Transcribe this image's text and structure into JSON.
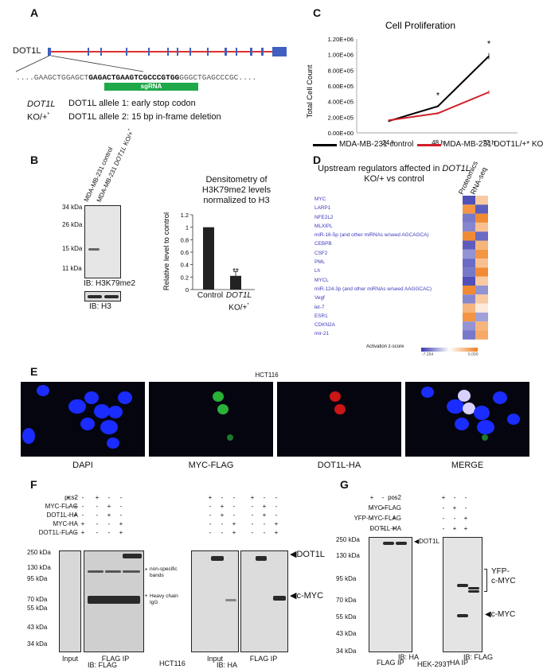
{
  "panels": {
    "a": "A",
    "b": "B",
    "c": "C",
    "d": "D",
    "e": "E",
    "f": "F",
    "g": "G"
  },
  "panel_a": {
    "gene": "DOT1L",
    "seq_prefix": "....GAAGCTGGAGCT",
    "seq_bold": "GAGACTGAAGTCGCCCGTGG",
    "seq_suffix": "GGGCTGAGCCCGC....",
    "sgrna": "sgRNA",
    "ko_gene": "DOT1L",
    "ko_suffix": "KO/+",
    "ko_sup": "*",
    "allele1": "DOT1L allele 1: early stop codon",
    "allele2": "DOT1L allele 2: 15 bp in-frame deletion"
  },
  "panel_b": {
    "lane1": "MDA-MB-231 control",
    "lane2_prefix": "MDA-MB-231 ",
    "lane2_gene": "DOT1L",
    "lane2_suffix": " KO/+",
    "lane2_sup": "*",
    "markers": [
      "34 kDa",
      "26 kDa",
      "15 kDa",
      "11 kDa"
    ],
    "ib1": "IB: H3K79me2",
    "ib2": "IB: H3",
    "densito_title": "Densitometry of H3K79me2 levels normalized to H3",
    "ylabel": "Relative level to control",
    "sig": "**",
    "xcat1": "Control",
    "xcat2_gene": "DOT1L",
    "xcat2_suffix": "KO/+",
    "xcat2_sup": "*"
  },
  "chart_data": [
    {
      "type": "bar",
      "categories": [
        "Control",
        "DOT1L KO/+*"
      ],
      "values": [
        1.0,
        0.22
      ],
      "errors": [
        0,
        0.07
      ],
      "ylabel": "Relative level to control",
      "ylim": [
        0,
        1.2
      ],
      "yticks": [
        0,
        0.2,
        0.4,
        0.6,
        0.8,
        1,
        1.2
      ],
      "ytick_labels": [
        "0",
        "0.2",
        "0.4",
        "0.6",
        "0.8",
        "1",
        "1.2"
      ]
    },
    {
      "type": "line",
      "title": "Cell Proliferation",
      "x": [
        "24 h",
        "48 h",
        "72 h"
      ],
      "series": [
        {
          "name": "MDA-MB-231 control",
          "values": [
            150000,
            340000,
            980000
          ],
          "errors": [
            10000,
            15000,
            40000
          ],
          "color": "#000000"
        },
        {
          "name": "MDA-MB-231 DOT1L/+* KO",
          "values": [
            160000,
            250000,
            520000
          ],
          "errors": [
            8000,
            15000,
            25000
          ],
          "color": "#d0202a"
        }
      ],
      "ylabel": "Total Cell Count",
      "ylim": [
        0,
        1200000
      ],
      "yticks": [
        0,
        200000,
        400000,
        600000,
        800000,
        1000000,
        1200000
      ],
      "ytick_labels": [
        "0.00E+00",
        "2.00E+05",
        "4.00E+05",
        "6.00E+05",
        "8.00E+05",
        "1.00E+06",
        "1.20E+06"
      ],
      "sig_markers": [
        "*",
        "*"
      ],
      "legend_position": "bottom"
    },
    {
      "type": "heatmap",
      "title_prefix": "Upstream regulators affected in ",
      "title_gene": "DOT1L",
      "title_suffix": " KO/+ vs control",
      "columns": [
        "Proteomics",
        "RNA-seq"
      ],
      "rows": [
        "MYC",
        "LARP1",
        "NFE2L2",
        "MLXIPL",
        "miR-16-5p (and other miRNAs w/seed AGCAGCA)",
        "CEBPB",
        "CSF2",
        "PML",
        "Lh",
        "MYCL",
        "miR-124-3p (and other miRNAs w/seed AAGGCAC)",
        "Vegf",
        "let-7",
        "ESR1",
        "CDKN2A",
        "mir-21"
      ],
      "values": [
        [
          -6.5,
          2.5
        ],
        [
          5.0,
          -6.0
        ],
        [
          -5.0,
          5.5
        ],
        [
          -4.5,
          3.0
        ],
        [
          5.5,
          -5.5
        ],
        [
          -6.0,
          3.5
        ],
        [
          -4.0,
          5.0
        ],
        [
          -5.5,
          3.0
        ],
        [
          -5.0,
          5.5
        ],
        [
          -6.5,
          2.5
        ],
        [
          5.5,
          -4.0
        ],
        [
          -4.5,
          2.5
        ],
        [
          3.5,
          1.0
        ],
        [
          5.0,
          -3.5
        ],
        [
          -4.0,
          3.5
        ],
        [
          -5.0,
          4.0
        ]
      ],
      "colorbar_label": "Activation z-score",
      "colorbar_min": "-7.264",
      "colorbar_max": "6.000",
      "color_low": "#3b3bb0",
      "color_high": "#f08020"
    }
  ],
  "panel_c": {
    "legend1": "MDA-MB-231 control",
    "legend2": "MDA-MB-231 DOT1L/+* KO"
  },
  "panel_e": {
    "cell_line": "HCT116",
    "captions": [
      "DAPI",
      "MYC-FLAG",
      "DOT1L-HA",
      "MERGE"
    ],
    "colors": {
      "dapi": "#1a2cff",
      "green": "#30d040",
      "red": "#e01818"
    }
  },
  "panel_f": {
    "rows": [
      "pcs2",
      "MYC-FLAG",
      "DOT1L-HA",
      "MYC-HA",
      "DOT1L-FLAG"
    ],
    "signs": [
      [
        "+",
        "-",
        "-",
        "-"
      ],
      [
        "-",
        "+",
        "-",
        "-"
      ],
      [
        "-",
        "+",
        "-",
        "-"
      ],
      [
        "-",
        "-",
        "+",
        "-"
      ],
      [
        "-",
        "-",
        "+",
        "-"
      ]
    ],
    "signs_display": [
      [
        "+",
        "-",
        "-"
      ],
      [
        "-",
        "+",
        "-"
      ],
      [
        "-",
        "+",
        "-"
      ],
      [
        "-",
        "-",
        "+"
      ],
      [
        "-",
        "-",
        "+"
      ]
    ],
    "markers": [
      "250 kDa",
      "130 kDa",
      "95 kDa",
      "70 kDa",
      "55 kDa",
      "43 kDa",
      "34 kDa"
    ],
    "lane_groups": [
      "Input",
      "FLAG IP",
      "Input",
      "FLAG IP"
    ],
    "ib_left": "IB: FLAG",
    "ib_right": "IB: HA",
    "nonspecific": "non-specific bands",
    "heavy": "Heavy chain IgG",
    "star": "*",
    "dot1l": "DOT1L",
    "cmyc": "c-MYC",
    "cell_line": "HCT116"
  },
  "panel_g": {
    "rows": [
      "pcs2",
      "MYC-FLAG",
      "YFP-MYC-FLAG",
      "DOT1L-HA"
    ],
    "signs": [
      [
        "+",
        "-",
        "-"
      ],
      [
        "-",
        "+",
        "-"
      ],
      [
        "-",
        "-",
        "+"
      ],
      [
        "-",
        "+",
        "+"
      ]
    ],
    "markers": [
      "250 kDa",
      "130 kDa",
      "95 kDa",
      "70 kDa",
      "55 kDa",
      "43 kDa",
      "34 kDa"
    ],
    "ip_left": "FLAG IP",
    "ip_right": "HA IP",
    "ib_left": "IB: HA",
    "ib_right": "IB: FLAG",
    "dot1l": "DOT1L",
    "yfp": "YFP-",
    "cmyc_yfp": "c-MYC",
    "cmyc": "c-MYC",
    "cell_line": "HEK-293T"
  }
}
